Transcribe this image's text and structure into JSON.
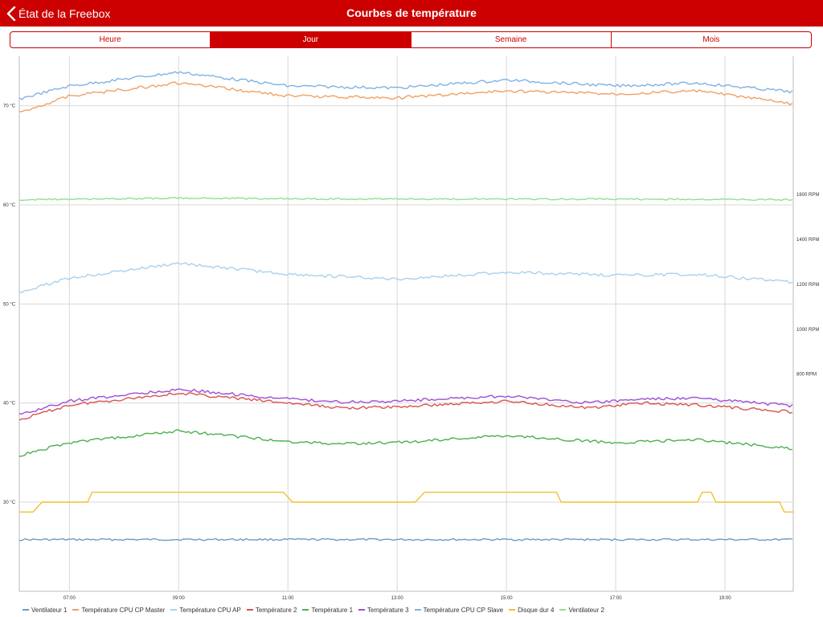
{
  "nav": {
    "back_label": "État de la Freebox",
    "title": "Courbes de température"
  },
  "tabs": [
    {
      "label": "Heure",
      "active": false
    },
    {
      "label": "Jour",
      "active": true
    },
    {
      "label": "Semaine",
      "active": false
    },
    {
      "label": "Mois",
      "active": false
    }
  ],
  "chart_data": {
    "type": "line",
    "title": "",
    "x_range": [
      "06:05",
      "20:15"
    ],
    "x_ticks": [
      "07:00",
      "09:00",
      "11:00",
      "13:00",
      "15:00",
      "17:00",
      "19:00"
    ],
    "y_left": {
      "unit": "°C",
      "ticks": [
        "30 °C",
        "40 °C",
        "50 °C",
        "60 °C",
        "70 °C"
      ],
      "range": [
        21,
        75
      ]
    },
    "y_right": {
      "unit": "RPM",
      "ticks": [
        "800 RPM",
        "1000 RPM",
        "1200 RPM",
        "1400 RPM",
        "1600 RPM"
      ],
      "range": [
        -167,
        2216
      ]
    },
    "grid": true,
    "legend_position": "bottom",
    "legend": [
      {
        "label": "Ventilateur 1",
        "color": "#6e9bc4",
        "axis": "right",
        "points": [
          [
            "06:05",
            63.0
          ],
          [
            "09:00",
            63.6
          ],
          [
            "13:00",
            63.4
          ],
          [
            "17:00",
            63.3
          ],
          [
            "20:15",
            63.0
          ]
        ]
      },
      {
        "label": "Température CPU CP Master",
        "color": "#f0a064",
        "axis": "left",
        "points": [
          [
            "06:05",
            69.3
          ],
          [
            "07:00",
            71.0
          ],
          [
            "09:00",
            72.3
          ],
          [
            "11:00",
            71.0
          ],
          [
            "13:00",
            70.8
          ],
          [
            "15:00",
            71.5
          ],
          [
            "17:00",
            71.2
          ],
          [
            "18:30",
            71.5
          ],
          [
            "20:15",
            70.2
          ]
        ]
      },
      {
        "label": "Température CPU AP",
        "color": "#a9d1ee",
        "axis": "left",
        "points": [
          [
            "06:05",
            51.2
          ],
          [
            "07:00",
            52.6
          ],
          [
            "09:00",
            54.1
          ],
          [
            "11:00",
            53.0
          ],
          [
            "13:00",
            52.5
          ],
          [
            "15:00",
            53.2
          ],
          [
            "17:00",
            52.9
          ],
          [
            "18:30",
            53.0
          ],
          [
            "20:15",
            52.2
          ]
        ]
      },
      {
        "label": "Température 2",
        "color": "#d9534f",
        "axis": "left",
        "points": [
          [
            "06:05",
            38.3
          ],
          [
            "07:00",
            39.8
          ],
          [
            "09:00",
            41.0
          ],
          [
            "11:00",
            40.0
          ],
          [
            "12:00",
            39.5
          ],
          [
            "13:00",
            39.6
          ],
          [
            "15:00",
            40.2
          ],
          [
            "16:30",
            39.5
          ],
          [
            "17:30",
            40.0
          ],
          [
            "18:30",
            39.8
          ],
          [
            "20:15",
            39.1
          ]
        ]
      },
      {
        "label": "Température 1",
        "color": "#4caf50",
        "axis": "left",
        "points": [
          [
            "06:05",
            34.7
          ],
          [
            "07:00",
            36.0
          ],
          [
            "09:00",
            37.2
          ],
          [
            "11:00",
            36.1
          ],
          [
            "12:00",
            35.9
          ],
          [
            "13:00",
            36.0
          ],
          [
            "15:00",
            36.7
          ],
          [
            "17:00",
            36.0
          ],
          [
            "18:30",
            36.3
          ],
          [
            "20:15",
            35.4
          ]
        ]
      },
      {
        "label": "Température 3",
        "color": "#9c4fd6",
        "axis": "left",
        "points": [
          [
            "06:05",
            38.8
          ],
          [
            "07:00",
            40.2
          ],
          [
            "09:00",
            41.4
          ],
          [
            "11:00",
            40.4
          ],
          [
            "12:00",
            40.1
          ],
          [
            "13:00",
            40.2
          ],
          [
            "15:00",
            40.7
          ],
          [
            "16:30",
            40.0
          ],
          [
            "17:30",
            40.4
          ],
          [
            "18:30",
            40.5
          ],
          [
            "20:15",
            39.7
          ]
        ]
      },
      {
        "label": "Température CPU CP Slave",
        "color": "#7fb2e5",
        "axis": "left",
        "points": [
          [
            "06:05",
            70.7
          ],
          [
            "07:00",
            72.0
          ],
          [
            "09:00",
            73.4
          ],
          [
            "11:00",
            72.0
          ],
          [
            "13:00",
            71.8
          ],
          [
            "15:00",
            72.6
          ],
          [
            "17:00",
            72.0
          ],
          [
            "18:30",
            72.3
          ],
          [
            "20:15",
            71.4
          ]
        ]
      },
      {
        "label": "Disque dur 4",
        "color": "#f2c12e",
        "axis": "left",
        "points": [
          [
            "06:05",
            29.0
          ],
          [
            "06:20",
            29.0
          ],
          [
            "06:30",
            30.0
          ],
          [
            "07:20",
            30.0
          ],
          [
            "07:25",
            31.0
          ],
          [
            "10:55",
            31.0
          ],
          [
            "11:05",
            30.0
          ],
          [
            "13:20",
            30.0
          ],
          [
            "13:30",
            31.0
          ],
          [
            "15:55",
            31.0
          ],
          [
            "16:00",
            30.0
          ],
          [
            "18:30",
            30.0
          ],
          [
            "18:35",
            31.0
          ],
          [
            "18:45",
            31.0
          ],
          [
            "18:50",
            30.0
          ],
          [
            "20:00",
            30.0
          ],
          [
            "20:05",
            29.0
          ],
          [
            "20:15",
            29.0
          ]
        ]
      },
      {
        "label": "Ventilateur 2",
        "color": "#90e090",
        "axis": "right",
        "points": [
          [
            "06:05",
            1577
          ],
          [
            "09:00",
            1584
          ],
          [
            "11:00",
            1581
          ],
          [
            "13:00",
            1580
          ],
          [
            "17:00",
            1580
          ],
          [
            "20:15",
            1577
          ]
        ]
      }
    ]
  }
}
